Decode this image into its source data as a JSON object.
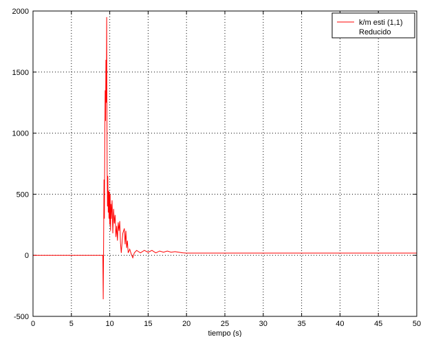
{
  "chart_data": {
    "type": "line",
    "xlabel": "tiempo (s)",
    "ylabel": "",
    "xlim": [
      0,
      50
    ],
    "ylim": [
      -500,
      2000
    ],
    "xticks": [
      0,
      5,
      10,
      15,
      20,
      25,
      30,
      35,
      40,
      45,
      50
    ],
    "yticks": [
      -500,
      0,
      500,
      1000,
      1500,
      2000
    ],
    "grid": true,
    "legend_position": "top-right",
    "legend": [
      "k/m esti (1,1)",
      "Reducido"
    ],
    "series": [
      {
        "name": "k/m esti (1,1)",
        "color": "#ff0000",
        "points": [
          [
            0,
            0
          ],
          [
            9.0,
            0
          ],
          [
            9.1,
            0
          ],
          [
            9.15,
            -360
          ],
          [
            9.2,
            100
          ],
          [
            9.25,
            620
          ],
          [
            9.3,
            300
          ],
          [
            9.35,
            900
          ],
          [
            9.4,
            1350
          ],
          [
            9.45,
            1100
          ],
          [
            9.5,
            1600
          ],
          [
            9.55,
            1250
          ],
          [
            9.6,
            1950
          ],
          [
            9.63,
            1150
          ],
          [
            9.66,
            700
          ],
          [
            9.7,
            400
          ],
          [
            9.75,
            650
          ],
          [
            9.8,
            350
          ],
          [
            9.85,
            530
          ],
          [
            9.9,
            300
          ],
          [
            9.95,
            520
          ],
          [
            10.0,
            250
          ],
          [
            10.05,
            500
          ],
          [
            10.1,
            200
          ],
          [
            10.15,
            420
          ],
          [
            10.2,
            300
          ],
          [
            10.3,
            450
          ],
          [
            10.4,
            180
          ],
          [
            10.5,
            380
          ],
          [
            10.6,
            260
          ],
          [
            10.7,
            330
          ],
          [
            10.8,
            150
          ],
          [
            10.9,
            240
          ],
          [
            11.0,
            120
          ],
          [
            11.1,
            270
          ],
          [
            11.2,
            200
          ],
          [
            11.3,
            280
          ],
          [
            11.4,
            100
          ],
          [
            11.5,
            20
          ],
          [
            11.7,
            180
          ],
          [
            11.9,
            220
          ],
          [
            12.0,
            90
          ],
          [
            12.1,
            200
          ],
          [
            12.2,
            60
          ],
          [
            12.3,
            120
          ],
          [
            12.4,
            20
          ],
          [
            12.6,
            50
          ],
          [
            12.8,
            10
          ],
          [
            13.0,
            -20
          ],
          [
            13.2,
            20
          ],
          [
            13.5,
            40
          ],
          [
            14.0,
            20
          ],
          [
            14.5,
            40
          ],
          [
            15.0,
            25
          ],
          [
            15.5,
            40
          ],
          [
            16.0,
            20
          ],
          [
            16.5,
            35
          ],
          [
            17.0,
            25
          ],
          [
            17.5,
            35
          ],
          [
            18.0,
            25
          ],
          [
            18.5,
            30
          ],
          [
            19.0,
            25
          ],
          [
            19.5,
            20
          ],
          [
            20.0,
            18
          ],
          [
            25.0,
            18
          ],
          [
            30.0,
            18
          ],
          [
            35.0,
            18
          ],
          [
            40.0,
            18
          ],
          [
            45.0,
            18
          ],
          [
            50.0,
            18
          ]
        ]
      }
    ]
  }
}
